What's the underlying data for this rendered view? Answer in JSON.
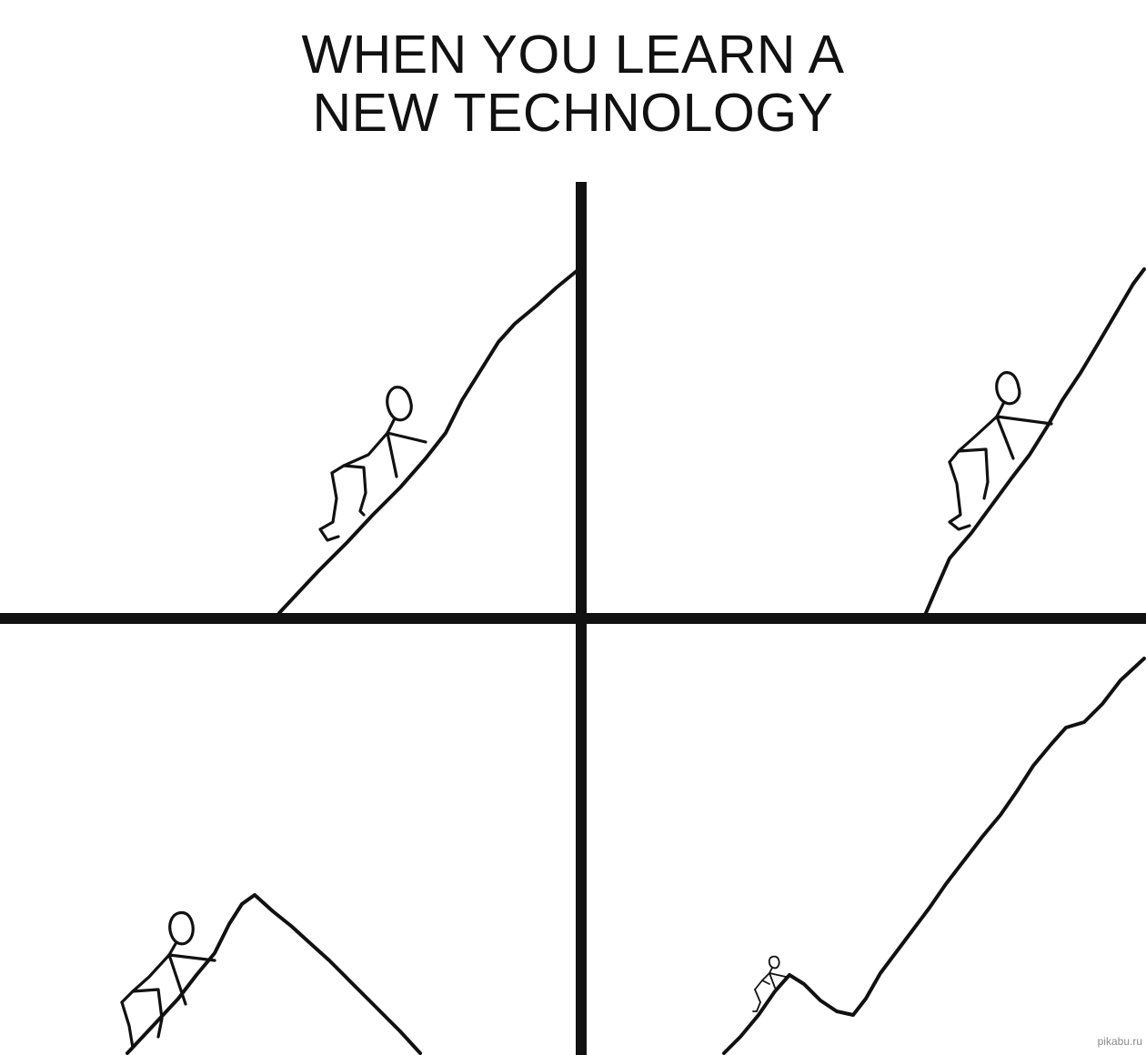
{
  "meme": {
    "title_line_1": "WHEN YOU LEARN A",
    "title_line_2": "NEW TECHNOLOGY",
    "watermark": "pikabu.ru"
  },
  "panels": [
    {
      "id": "top-left",
      "scene": "stick figure climbing a slope"
    },
    {
      "id": "top-right",
      "scene": "stick figure climbing a steeper slope"
    },
    {
      "id": "bottom-left",
      "scene": "stick figure near a peak that drops off"
    },
    {
      "id": "bottom-right",
      "scene": "tiny stick figure before a dip and a much larger slope"
    }
  ],
  "colors": {
    "ink": "#111111",
    "background": "#ffffff",
    "watermark": "#8a8a8a"
  }
}
